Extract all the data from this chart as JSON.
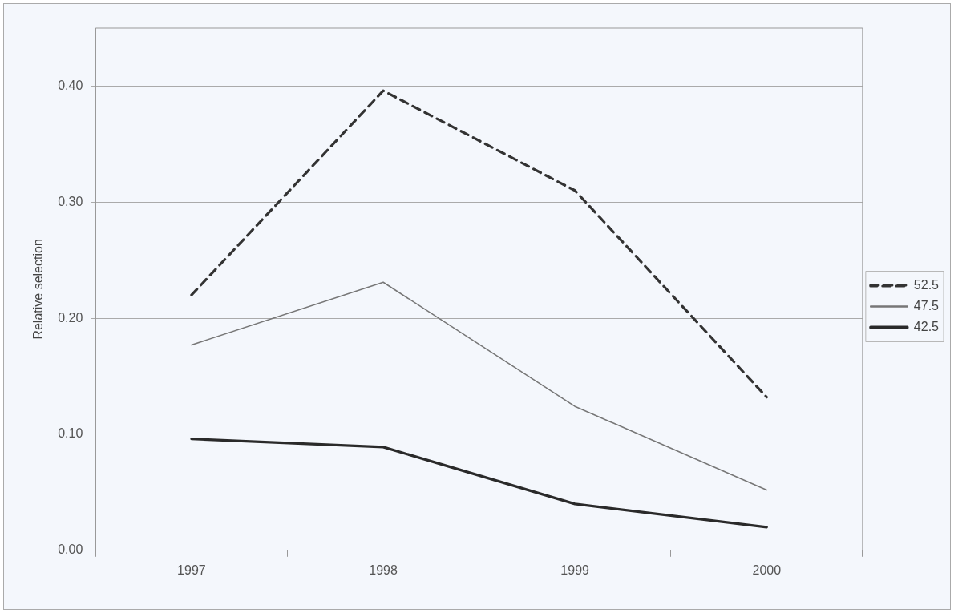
{
  "chart_data": {
    "type": "line",
    "ylabel": "Relative selection",
    "categories": [
      "1997",
      "1998",
      "1999",
      "2000"
    ],
    "series": [
      {
        "name": "52.5",
        "color": "#333333",
        "line_style": "dashed",
        "values": [
          0.22,
          0.396,
          0.31,
          0.132
        ]
      },
      {
        "name": "47.5",
        "color": "#777777",
        "line_style": "solid",
        "values": [
          0.177,
          0.231,
          0.124,
          0.052
        ]
      },
      {
        "name": "42.5",
        "color": "#2a2a2a",
        "line_style": "solid",
        "values": [
          0.096,
          0.089,
          0.04,
          0.02
        ]
      }
    ],
    "ylim": [
      0,
      0.45
    ],
    "yticks": [
      {
        "value": 0,
        "label": "0.00"
      },
      {
        "value": 0.1,
        "label": "0.10"
      },
      {
        "value": 0.2,
        "label": "0.20"
      },
      {
        "value": 0.3,
        "label": "0.30"
      },
      {
        "value": 0.4,
        "label": "0.40"
      }
    ],
    "grid": "y",
    "legend": "right",
    "marker": "none"
  }
}
